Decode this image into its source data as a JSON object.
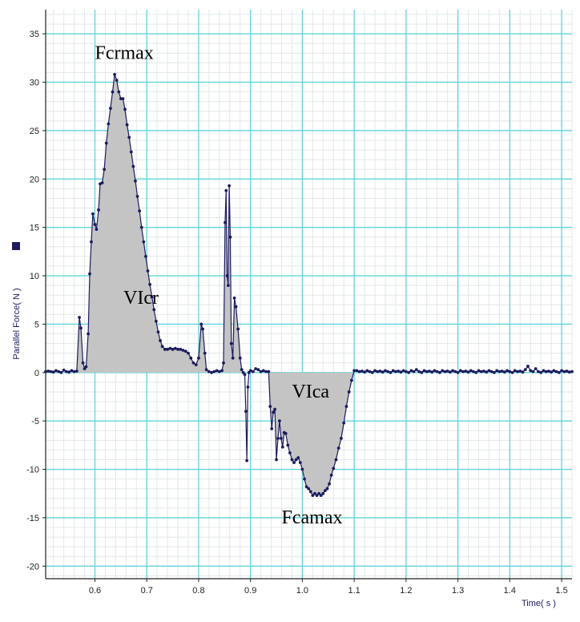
{
  "chart_data": {
    "type": "area",
    "ylabel": "Parallel Force( N )",
    "xlabel": "Time( s )",
    "xlim": [
      0.505,
      1.52
    ],
    "ylim": [
      -21.3,
      37.5
    ],
    "x_ticks": [
      0.6,
      0.7,
      0.8,
      0.9,
      1.0,
      1.1,
      1.2,
      1.3,
      1.4,
      1.5
    ],
    "x_tick_labels": [
      "0.6",
      "0.7",
      "0.8",
      "0.9",
      "1.0",
      "1.1",
      "1.2",
      "1.3",
      "1.4",
      "1.5"
    ],
    "y_ticks": [
      35,
      30,
      25,
      20,
      15,
      10,
      5,
      0,
      -5,
      -10,
      -15,
      -20
    ],
    "y_tick_labels": [
      "35",
      "30",
      "25",
      "20",
      "15",
      "10",
      "5",
      "0",
      "-5",
      "-10",
      "-15",
      "-20"
    ],
    "grid": true,
    "colors": {
      "line": "#1b1b5e",
      "marker": "#1b1b5e",
      "fill": "#c4c4c4",
      "major_grid": "#5fd6dc",
      "minor_grid": "#e3e8e8",
      "axis": "#222222"
    },
    "annotations": [
      {
        "text": "Fcrmax",
        "x": 0.6,
        "y": 32.4
      },
      {
        "text": "VIcr",
        "x": 0.655,
        "y": 7.1
      },
      {
        "text": "VIca",
        "x": 0.98,
        "y": -2.6
      },
      {
        "text": "Fcamax",
        "x": 0.96,
        "y": -15.6
      }
    ],
    "series": [
      {
        "fill_ranges": [
          [
            0.565,
            0.885
          ],
          [
            0.935,
            1.1
          ]
        ],
        "points": [
          [
            0.505,
            0.1
          ],
          [
            0.51,
            0.15
          ],
          [
            0.515,
            0.1
          ],
          [
            0.52,
            0.05
          ],
          [
            0.525,
            0.2
          ],
          [
            0.53,
            0.1
          ],
          [
            0.535,
            0.0
          ],
          [
            0.54,
            0.25
          ],
          [
            0.545,
            0.1
          ],
          [
            0.55,
            0.05
          ],
          [
            0.555,
            0.2
          ],
          [
            0.56,
            0.1
          ],
          [
            0.565,
            0.15
          ],
          [
            0.57,
            5.7
          ],
          [
            0.573,
            4.6
          ],
          [
            0.577,
            1.0
          ],
          [
            0.58,
            0.4
          ],
          [
            0.583,
            0.6
          ],
          [
            0.587,
            4.0
          ],
          [
            0.59,
            10.2
          ],
          [
            0.593,
            13.5
          ],
          [
            0.596,
            16.4
          ],
          [
            0.6,
            15.3
          ],
          [
            0.603,
            14.8
          ],
          [
            0.607,
            16.8
          ],
          [
            0.61,
            19.5
          ],
          [
            0.614,
            19.6
          ],
          [
            0.618,
            21.0
          ],
          [
            0.622,
            23.7
          ],
          [
            0.626,
            25.7
          ],
          [
            0.63,
            27.3
          ],
          [
            0.634,
            29.0
          ],
          [
            0.638,
            30.8
          ],
          [
            0.642,
            30.2
          ],
          [
            0.646,
            29.0
          ],
          [
            0.65,
            28.3
          ],
          [
            0.654,
            28.3
          ],
          [
            0.658,
            27.2
          ],
          [
            0.662,
            25.6
          ],
          [
            0.666,
            24.3
          ],
          [
            0.67,
            22.8
          ],
          [
            0.674,
            21.3
          ],
          [
            0.678,
            19.8
          ],
          [
            0.682,
            18.2
          ],
          [
            0.686,
            16.7
          ],
          [
            0.69,
            15.0
          ],
          [
            0.694,
            13.5
          ],
          [
            0.698,
            12.0
          ],
          [
            0.702,
            10.5
          ],
          [
            0.706,
            9.1
          ],
          [
            0.71,
            7.8
          ],
          [
            0.714,
            6.5
          ],
          [
            0.718,
            5.3
          ],
          [
            0.722,
            4.2
          ],
          [
            0.726,
            3.3
          ],
          [
            0.73,
            2.7
          ],
          [
            0.735,
            2.4
          ],
          [
            0.74,
            2.4
          ],
          [
            0.745,
            2.5
          ],
          [
            0.75,
            2.4
          ],
          [
            0.755,
            2.5
          ],
          [
            0.76,
            2.4
          ],
          [
            0.765,
            2.4
          ],
          [
            0.77,
            2.3
          ],
          [
            0.775,
            2.2
          ],
          [
            0.78,
            2.0
          ],
          [
            0.785,
            1.5
          ],
          [
            0.79,
            1.0
          ],
          [
            0.795,
            0.8
          ],
          [
            0.8,
            1.5
          ],
          [
            0.805,
            5.0
          ],
          [
            0.808,
            4.5
          ],
          [
            0.812,
            2.0
          ],
          [
            0.815,
            0.3
          ],
          [
            0.82,
            0.1
          ],
          [
            0.825,
            0.0
          ],
          [
            0.83,
            0.1
          ],
          [
            0.835,
            0.2
          ],
          [
            0.84,
            0.1
          ],
          [
            0.845,
            0.2
          ],
          [
            0.848,
            1.0
          ],
          [
            0.851,
            15.5
          ],
          [
            0.853,
            18.8
          ],
          [
            0.855,
            10.0
          ],
          [
            0.857,
            9.0
          ],
          [
            0.859,
            19.3
          ],
          [
            0.861,
            14.0
          ],
          [
            0.863,
            3.0
          ],
          [
            0.866,
            1.5
          ],
          [
            0.869,
            7.7
          ],
          [
            0.872,
            6.8
          ],
          [
            0.876,
            4.5
          ],
          [
            0.88,
            1.5
          ],
          [
            0.883,
            0.3
          ],
          [
            0.886,
            0.0
          ],
          [
            0.889,
            -0.2
          ],
          [
            0.891,
            -4.0
          ],
          [
            0.893,
            -9.1
          ],
          [
            0.895,
            -1.5
          ],
          [
            0.897,
            0.0
          ],
          [
            0.9,
            0.2
          ],
          [
            0.905,
            0.1
          ],
          [
            0.91,
            0.4
          ],
          [
            0.915,
            0.3
          ],
          [
            0.92,
            0.1
          ],
          [
            0.925,
            0.2
          ],
          [
            0.93,
            0.1
          ],
          [
            0.935,
            0.1
          ],
          [
            0.938,
            -3.5
          ],
          [
            0.941,
            -5.8
          ],
          [
            0.944,
            -4.1
          ],
          [
            0.947,
            -3.8
          ],
          [
            0.95,
            -9.0
          ],
          [
            0.953,
            -6.8
          ],
          [
            0.956,
            -5.0
          ],
          [
            0.959,
            -6.8
          ],
          [
            0.962,
            -7.7
          ],
          [
            0.965,
            -6.2
          ],
          [
            0.968,
            -6.3
          ],
          [
            0.972,
            -7.5
          ],
          [
            0.976,
            -8.3
          ],
          [
            0.98,
            -9.0
          ],
          [
            0.984,
            -9.3
          ],
          [
            0.988,
            -9.0
          ],
          [
            0.992,
            -8.8
          ],
          [
            0.996,
            -9.3
          ],
          [
            1.0,
            -10.0
          ],
          [
            1.004,
            -11.0
          ],
          [
            1.008,
            -11.8
          ],
          [
            1.012,
            -12.0
          ],
          [
            1.016,
            -12.3
          ],
          [
            1.02,
            -12.7
          ],
          [
            1.024,
            -12.5
          ],
          [
            1.028,
            -12.7
          ],
          [
            1.032,
            -12.5
          ],
          [
            1.036,
            -12.7
          ],
          [
            1.04,
            -12.5
          ],
          [
            1.044,
            -12.2
          ],
          [
            1.048,
            -12.0
          ],
          [
            1.052,
            -11.5
          ],
          [
            1.056,
            -10.6
          ],
          [
            1.06,
            -9.9
          ],
          [
            1.065,
            -9.0
          ],
          [
            1.07,
            -7.8
          ],
          [
            1.075,
            -6.8
          ],
          [
            1.08,
            -5.2
          ],
          [
            1.085,
            -3.5
          ],
          [
            1.09,
            -2.0
          ],
          [
            1.095,
            -0.8
          ],
          [
            1.1,
            0.2
          ],
          [
            1.105,
            0.2
          ],
          [
            1.11,
            0.1
          ],
          [
            1.115,
            0.15
          ],
          [
            1.12,
            0.05
          ],
          [
            1.125,
            0.2
          ],
          [
            1.13,
            0.1
          ],
          [
            1.135,
            0.0
          ],
          [
            1.14,
            0.2
          ],
          [
            1.145,
            0.1
          ],
          [
            1.15,
            0.15
          ],
          [
            1.155,
            0.05
          ],
          [
            1.16,
            0.2
          ],
          [
            1.165,
            0.1
          ],
          [
            1.17,
            0.0
          ],
          [
            1.175,
            0.2
          ],
          [
            1.18,
            0.1
          ],
          [
            1.185,
            0.15
          ],
          [
            1.19,
            0.05
          ],
          [
            1.195,
            0.2
          ],
          [
            1.2,
            0.1
          ],
          [
            1.205,
            0.0
          ],
          [
            1.21,
            0.2
          ],
          [
            1.215,
            0.1
          ],
          [
            1.22,
            0.3
          ],
          [
            1.225,
            0.1
          ],
          [
            1.23,
            0.0
          ],
          [
            1.235,
            0.2
          ],
          [
            1.24,
            0.1
          ],
          [
            1.245,
            0.15
          ],
          [
            1.25,
            0.05
          ],
          [
            1.255,
            0.2
          ],
          [
            1.26,
            0.1
          ],
          [
            1.265,
            0.0
          ],
          [
            1.27,
            0.2
          ],
          [
            1.275,
            0.1
          ],
          [
            1.28,
            0.15
          ],
          [
            1.285,
            0.05
          ],
          [
            1.29,
            0.2
          ],
          [
            1.295,
            0.1
          ],
          [
            1.3,
            0.0
          ],
          [
            1.305,
            0.2
          ],
          [
            1.31,
            0.1
          ],
          [
            1.315,
            0.15
          ],
          [
            1.32,
            0.05
          ],
          [
            1.325,
            0.2
          ],
          [
            1.33,
            0.1
          ],
          [
            1.335,
            0.0
          ],
          [
            1.34,
            0.2
          ],
          [
            1.345,
            0.1
          ],
          [
            1.35,
            0.15
          ],
          [
            1.355,
            0.05
          ],
          [
            1.36,
            0.2
          ],
          [
            1.365,
            0.1
          ],
          [
            1.37,
            0.0
          ],
          [
            1.375,
            0.2
          ],
          [
            1.38,
            0.1
          ],
          [
            1.385,
            0.15
          ],
          [
            1.39,
            0.05
          ],
          [
            1.395,
            0.2
          ],
          [
            1.4,
            0.1
          ],
          [
            1.405,
            0.0
          ],
          [
            1.41,
            0.2
          ],
          [
            1.415,
            0.1
          ],
          [
            1.42,
            0.15
          ],
          [
            1.425,
            0.05
          ],
          [
            1.43,
            0.3
          ],
          [
            1.435,
            0.65
          ],
          [
            1.44,
            0.2
          ],
          [
            1.445,
            0.1
          ],
          [
            1.45,
            0.4
          ],
          [
            1.455,
            0.1
          ],
          [
            1.46,
            0.0
          ],
          [
            1.465,
            0.2
          ],
          [
            1.47,
            0.1
          ],
          [
            1.475,
            0.15
          ],
          [
            1.48,
            0.05
          ],
          [
            1.485,
            0.2
          ],
          [
            1.49,
            0.1
          ],
          [
            1.495,
            0.0
          ],
          [
            1.5,
            0.2
          ],
          [
            1.505,
            0.1
          ],
          [
            1.51,
            0.15
          ],
          [
            1.515,
            0.05
          ],
          [
            1.52,
            0.1
          ]
        ]
      }
    ]
  }
}
